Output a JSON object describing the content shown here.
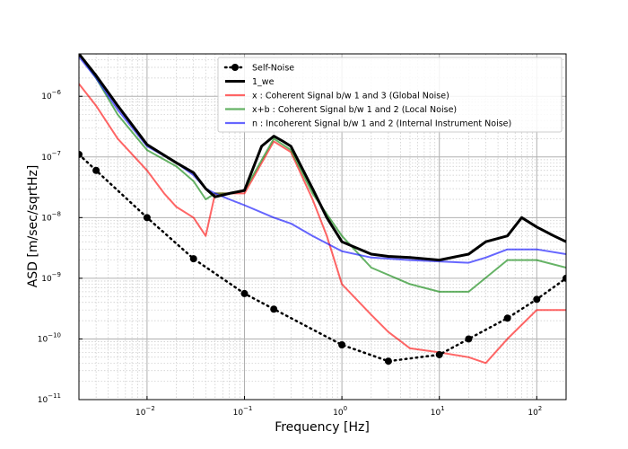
{
  "chart_data": {
    "type": "line",
    "xlabel": "Frequency [Hz]",
    "ylabel": "ASD [m/sec/sqrtHz]",
    "xscale": "log",
    "yscale": "log",
    "xlim": [
      0.002,
      200
    ],
    "ylim": [
      1e-11,
      5e-06
    ],
    "grid": true,
    "legend_position": "top-right",
    "x_ticks": [
      {
        "value": 0.01,
        "label": "10",
        "exp": "−2"
      },
      {
        "value": 0.1,
        "label": "10",
        "exp": "−1"
      },
      {
        "value": 1,
        "label": "10",
        "exp": "0"
      },
      {
        "value": 10,
        "label": "10",
        "exp": "1"
      },
      {
        "value": 100,
        "label": "10",
        "exp": "2"
      }
    ],
    "y_ticks": [
      {
        "value": 1e-11,
        "label": "10",
        "exp": "−11"
      },
      {
        "value": 1e-10,
        "label": "10",
        "exp": "−10"
      },
      {
        "value": 1e-09,
        "label": "10",
        "exp": "−9"
      },
      {
        "value": 1e-08,
        "label": "10",
        "exp": "−8"
      },
      {
        "value": 1e-07,
        "label": "10",
        "exp": "−7"
      },
      {
        "value": 1e-06,
        "label": "10",
        "exp": "−6"
      }
    ],
    "series": [
      {
        "name": "Self-Noise",
        "color": "#000000",
        "style": "dotted-markers",
        "x": [
          0.002,
          0.003,
          0.01,
          0.03,
          0.1,
          0.2,
          1,
          3,
          10,
          20,
          50,
          100,
          200
        ],
        "y": [
          1.1e-07,
          6e-08,
          1e-08,
          2.1e-09,
          5.6e-10,
          3.1e-10,
          8e-11,
          4.3e-11,
          5.5e-11,
          1e-10,
          2.2e-10,
          4.5e-10,
          1e-09
        ]
      },
      {
        "name": "1_we",
        "color": "#000000",
        "style": "thick",
        "x": [
          0.002,
          0.003,
          0.005,
          0.01,
          0.02,
          0.03,
          0.04,
          0.05,
          0.07,
          0.1,
          0.15,
          0.2,
          0.25,
          0.3,
          0.5,
          0.7,
          1,
          2,
          3,
          5,
          10,
          20,
          30,
          50,
          70,
          100,
          150,
          200
        ],
        "y": [
          5e-06,
          2.2e-06,
          7e-07,
          1.6e-07,
          8e-08,
          5.5e-08,
          3e-08,
          2.2e-08,
          2.5e-08,
          2.8e-08,
          1.5e-07,
          2.2e-07,
          1.8e-07,
          1.5e-07,
          3e-08,
          1e-08,
          4e-09,
          2.5e-09,
          2.3e-09,
          2.2e-09,
          2e-09,
          2.5e-09,
          4e-09,
          5e-09,
          1e-08,
          7e-09,
          5e-09,
          4e-09
        ]
      },
      {
        "name": "x : Coherent Signal b/w 1 and 3 (Global Noise)",
        "color": "#ff0000",
        "style": "alpha",
        "x": [
          0.002,
          0.003,
          0.005,
          0.01,
          0.015,
          0.02,
          0.03,
          0.04,
          0.05,
          0.07,
          0.1,
          0.2,
          0.3,
          0.5,
          0.7,
          1,
          2,
          3,
          5,
          10,
          20,
          30,
          50,
          100,
          200
        ],
        "y": [
          1.6e-06,
          7e-07,
          2e-07,
          6e-08,
          2.5e-08,
          1.5e-08,
          1e-08,
          5e-09,
          2.5e-08,
          2.5e-08,
          2.5e-08,
          1.8e-07,
          1.2e-07,
          2e-08,
          5e-09,
          8e-10,
          2.5e-10,
          1.3e-10,
          7e-11,
          6e-11,
          5e-11,
          4e-11,
          1e-10,
          3e-10,
          3e-10
        ]
      },
      {
        "name": "x+b : Coherent Signal b/w 1 and 2 (Local Noise)",
        "color": "#008000",
        "style": "alpha",
        "x": [
          0.002,
          0.003,
          0.005,
          0.01,
          0.02,
          0.03,
          0.04,
          0.05,
          0.07,
          0.1,
          0.2,
          0.3,
          0.5,
          1,
          2,
          5,
          10,
          20,
          50,
          100,
          200
        ],
        "y": [
          5e-06,
          2e-06,
          5e-07,
          1.3e-07,
          7e-08,
          4e-08,
          2e-08,
          2.5e-08,
          2.5e-08,
          2.8e-08,
          2e-07,
          1.3e-07,
          2.5e-08,
          5e-09,
          1.5e-09,
          8e-10,
          6e-10,
          6e-10,
          2e-09,
          2e-09,
          1.5e-09
        ]
      },
      {
        "name": "n : Incoherent Signal b/w 1 and 2 (Internal Instrument Noise)",
        "color": "#0000ff",
        "style": "alpha",
        "x": [
          0.002,
          0.003,
          0.005,
          0.01,
          0.02,
          0.03,
          0.04,
          0.05,
          0.07,
          0.1,
          0.2,
          0.3,
          0.5,
          1,
          2,
          5,
          10,
          20,
          30,
          50,
          100,
          200
        ],
        "y": [
          4.5e-06,
          2e-06,
          6e-07,
          1.5e-07,
          8e-08,
          5e-08,
          3e-08,
          2.5e-08,
          2e-08,
          1.6e-08,
          1e-08,
          8e-09,
          5e-09,
          2.8e-09,
          2.2e-09,
          2e-09,
          1.9e-09,
          1.8e-09,
          2.2e-09,
          3e-09,
          3e-09,
          2.5e-09
        ]
      }
    ]
  }
}
